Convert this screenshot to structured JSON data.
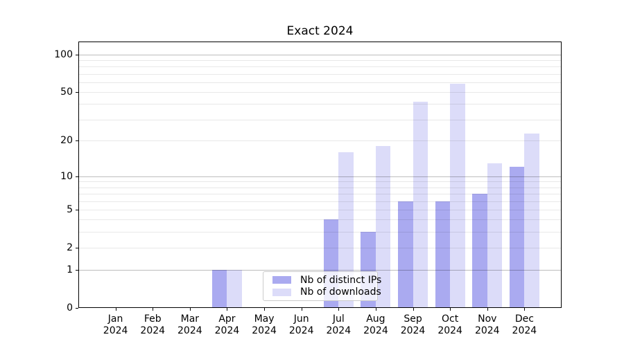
{
  "title": "Exact 2024",
  "legend": {
    "items": [
      {
        "label": "Nb of distinct IPs",
        "color": "#aaaaf0"
      },
      {
        "label": "Nb of downloads",
        "color": "#dcdcf9"
      }
    ],
    "position": "lower center inside axes"
  },
  "chart_data": {
    "type": "bar",
    "title": "Exact 2024",
    "categories": [
      "Jan",
      "Feb",
      "Mar",
      "Apr",
      "May",
      "Jun",
      "Jul",
      "Aug",
      "Sep",
      "Oct",
      "Nov",
      "Dec"
    ],
    "x_tick_year": "2024",
    "series": [
      {
        "name": "Nb of distinct IPs",
        "color": "#aaaaf0",
        "values": [
          0,
          0,
          0,
          1,
          0,
          0,
          4,
          3,
          6,
          6,
          7,
          12
        ]
      },
      {
        "name": "Nb of downloads",
        "color": "#dcdcf9",
        "values": [
          0,
          0,
          0,
          1,
          0,
          0,
          16,
          18,
          42,
          58,
          13,
          23
        ]
      }
    ],
    "xlabel": "",
    "ylabel": "",
    "yscale": "log1p",
    "yticks": [
      0,
      1,
      2,
      5,
      10,
      20,
      50,
      100
    ],
    "ylim": [
      0,
      127
    ],
    "grid": true,
    "major_gridlines": [
      1,
      10,
      100
    ],
    "minor_gridlines": [
      2,
      3,
      4,
      5,
      6,
      7,
      8,
      9,
      20,
      30,
      40,
      50,
      60,
      70,
      80,
      90
    ]
  }
}
